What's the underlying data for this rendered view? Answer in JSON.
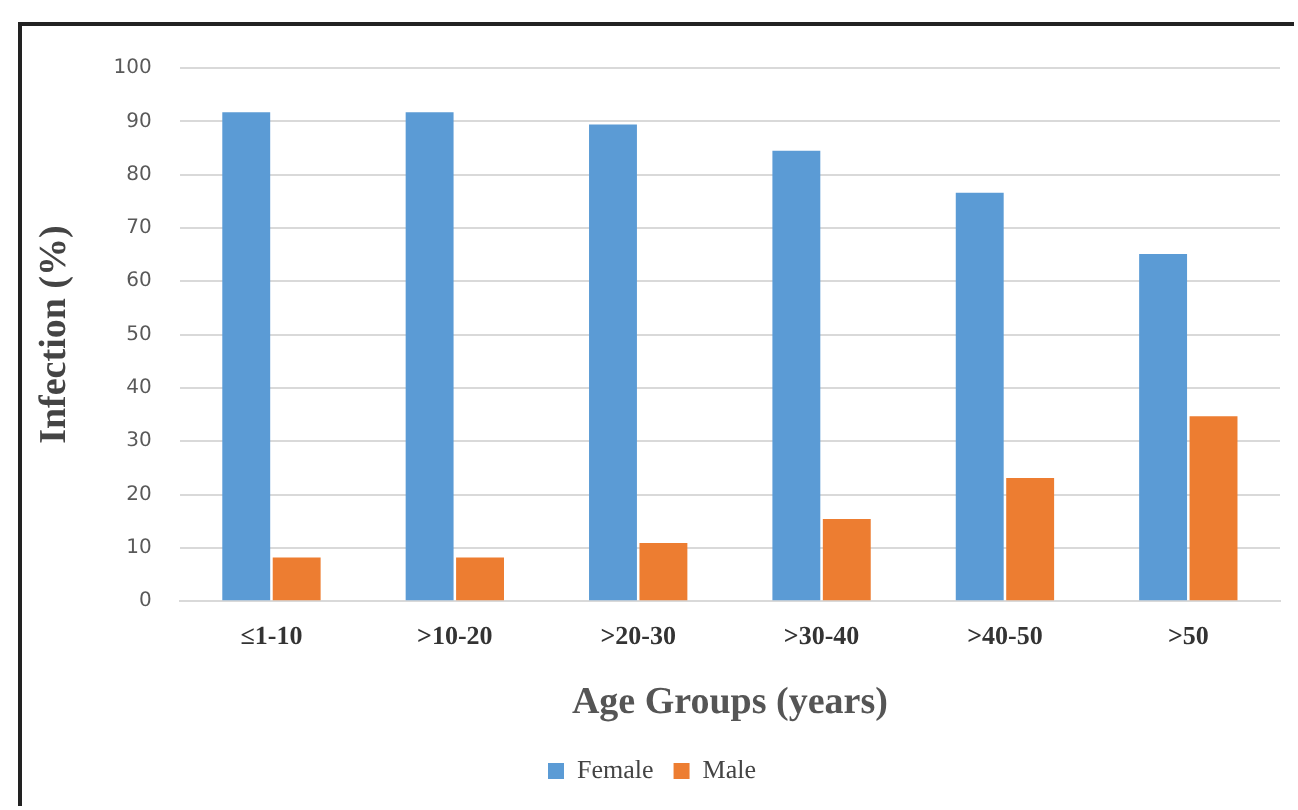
{
  "chart_data": {
    "type": "bar",
    "xlabel": "Age Groups (years)",
    "ylabel": "Infection (%)",
    "categories": [
      "≤1-10",
      ">10-20",
      ">20-30",
      ">30-40",
      ">40-50",
      ">50"
    ],
    "series": [
      {
        "name": "Female",
        "color": "#5b9bd5",
        "values": [
          91.7,
          91.7,
          89.4,
          84.5,
          76.6,
          65.1
        ]
      },
      {
        "name": "Male",
        "color": "#ed7d31",
        "values": [
          8.2,
          8.2,
          10.9,
          15.4,
          23.1,
          34.7
        ]
      }
    ],
    "ylim": [
      0,
      100
    ],
    "yticks": [
      0,
      10,
      20,
      30,
      40,
      50,
      60,
      70,
      80,
      90,
      100
    ],
    "grid": "y",
    "legend": "bottom"
  }
}
